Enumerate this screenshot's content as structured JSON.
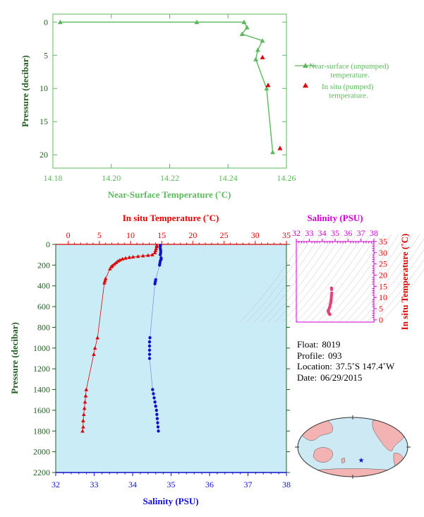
{
  "colors": {
    "surface": "#5cb85c",
    "pumped": "#dd0000",
    "temperature": "#dd0000",
    "salinity": "#1010cc",
    "salinity_axis": "#cc00cc",
    "pressure_axis": "#215c21",
    "panel_bg": "#c9ecf6",
    "land": "#f3b3b3",
    "ocean": "#cde9f3"
  },
  "chart_data": [
    {
      "id": "near-surface",
      "type": "line",
      "xlabel": "Near-Surface Temperature (˚C)",
      "ylabel": "Pressure (decibar)",
      "xlim": [
        14.18,
        14.26
      ],
      "ylim": [
        22,
        -1.2
      ],
      "x_ticks": [
        "14.18",
        "14.20",
        "14.22",
        "14.24",
        "14.26"
      ],
      "x_tick_values": [
        14.18,
        14.2,
        14.22,
        14.24,
        14.26
      ],
      "y_ticks": [
        "0",
        "5",
        "10",
        "15",
        "20"
      ],
      "y_tick_values": [
        0,
        5,
        10,
        15,
        20
      ],
      "series": [
        {
          "name": "Near-surface (unpumped) temperature.",
          "marker": "triangle",
          "points": [
            [
              14.1825,
              0.0
            ],
            [
              14.2293,
              0.0
            ],
            [
              14.2455,
              0.0
            ],
            [
              14.2465,
              0.8
            ],
            [
              14.2448,
              1.8
            ],
            [
              14.2518,
              2.8
            ],
            [
              14.2502,
              4.2
            ],
            [
              14.2495,
              5.6
            ],
            [
              14.2532,
              10.0
            ],
            [
              14.2553,
              19.6
            ]
          ]
        },
        {
          "name": "In situ (pumped) temperature.",
          "marker": "triangle",
          "points": [
            [
              14.2518,
              5.3
            ],
            [
              14.2537,
              9.5
            ],
            [
              14.2578,
              19.0
            ]
          ]
        }
      ]
    },
    {
      "id": "profile",
      "type": "line",
      "x_top_label": "In situ Temperature (˚C)",
      "x_bottom_label": "Salinity (PSU)",
      "ylabel": "Pressure (decibar)",
      "temperature_lim": [
        -2,
        35
      ],
      "salinity_lim": [
        32,
        38
      ],
      "ylim": [
        2200,
        0
      ],
      "temperature_ticks": [
        "0",
        "5",
        "10",
        "15",
        "20",
        "25",
        "30",
        "35"
      ],
      "temperature_tick_values": [
        0,
        5,
        10,
        15,
        20,
        25,
        30,
        35
      ],
      "salinity_ticks": [
        "32",
        "33",
        "34",
        "35",
        "36",
        "37",
        "38"
      ],
      "salinity_tick_values": [
        32,
        33,
        34,
        35,
        36,
        37,
        38
      ],
      "pressure_ticks": [
        "0",
        "200",
        "400",
        "600",
        "800",
        "1000",
        "1200",
        "1400",
        "1600",
        "1800",
        "2000",
        "2200"
      ],
      "pressure_tick_values": [
        0,
        200,
        400,
        600,
        800,
        1000,
        1200,
        1400,
        1600,
        1800,
        2000,
        2200
      ],
      "temperature_profile": [
        [
          14.2,
          10
        ],
        [
          14.2,
          20
        ],
        [
          14.1,
          40
        ],
        [
          14.0,
          60
        ],
        [
          13.9,
          80
        ],
        [
          13.5,
          100
        ],
        [
          12.8,
          105
        ],
        [
          12.0,
          110
        ],
        [
          11.2,
          115
        ],
        [
          10.4,
          120
        ],
        [
          9.8,
          125
        ],
        [
          9.2,
          132
        ],
        [
          8.7,
          140
        ],
        [
          8.3,
          150
        ],
        [
          8.0,
          160
        ],
        [
          7.7,
          175
        ],
        [
          7.4,
          190
        ],
        [
          7.1,
          205
        ],
        [
          6.9,
          215
        ],
        [
          6.7,
          235
        ],
        [
          6.0,
          330
        ],
        [
          5.9,
          350
        ],
        [
          5.8,
          370
        ],
        [
          4.7,
          900
        ],
        [
          4.3,
          1000
        ],
        [
          4.1,
          1060
        ],
        [
          2.9,
          1400
        ],
        [
          2.8,
          1460
        ],
        [
          2.7,
          1520
        ],
        [
          2.6,
          1580
        ],
        [
          2.5,
          1640
        ],
        [
          2.4,
          1700
        ],
        [
          2.4,
          1760
        ],
        [
          2.3,
          1800
        ]
      ],
      "salinity_profile": [
        [
          34.72,
          10
        ],
        [
          34.72,
          20
        ],
        [
          34.72,
          40
        ],
        [
          34.73,
          60
        ],
        [
          34.73,
          80
        ],
        [
          34.72,
          100
        ],
        [
          34.74,
          130
        ],
        [
          34.74,
          145
        ],
        [
          34.72,
          160
        ],
        [
          34.71,
          180
        ],
        [
          34.7,
          200
        ],
        [
          34.6,
          340
        ],
        [
          34.59,
          360
        ],
        [
          34.58,
          380
        ],
        [
          34.45,
          900
        ],
        [
          34.44,
          940
        ],
        [
          34.44,
          980
        ],
        [
          34.44,
          1020
        ],
        [
          34.44,
          1060
        ],
        [
          34.44,
          1100
        ],
        [
          34.52,
          1400
        ],
        [
          34.54,
          1440
        ],
        [
          34.56,
          1480
        ],
        [
          34.58,
          1520
        ],
        [
          34.6,
          1560
        ],
        [
          34.62,
          1600
        ],
        [
          34.63,
          1640
        ],
        [
          34.64,
          1680
        ],
        [
          34.65,
          1720
        ],
        [
          34.66,
          1760
        ],
        [
          34.67,
          1800
        ]
      ]
    },
    {
      "id": "ts-diagram",
      "type": "scatter",
      "xlabel": "Salinity (PSU)",
      "ylabel": "In situ Temperature (˚C)",
      "xlim": [
        32,
        38
      ],
      "ylim": [
        -1,
        35
      ],
      "x_ticks": [
        "32",
        "33",
        "34",
        "35",
        "36",
        "37",
        "38"
      ],
      "x_tick_values": [
        32,
        33,
        34,
        35,
        36,
        37,
        38
      ],
      "y_ticks": [
        "0",
        "5",
        "10",
        "15",
        "20",
        "25",
        "30",
        "35"
      ],
      "y_tick_values": [
        0,
        5,
        10,
        15,
        20,
        25,
        30,
        35
      ],
      "points": [
        [
          34.72,
          14.2
        ],
        [
          34.73,
          13.6
        ],
        [
          34.74,
          12.0
        ],
        [
          34.72,
          11.0
        ],
        [
          34.71,
          10.2
        ],
        [
          34.7,
          9.4
        ],
        [
          34.69,
          8.7
        ],
        [
          34.68,
          8.1
        ],
        [
          34.66,
          7.4
        ],
        [
          34.62,
          6.9
        ],
        [
          34.6,
          6.0
        ],
        [
          34.56,
          5.4
        ],
        [
          34.52,
          4.7
        ],
        [
          34.48,
          4.3
        ],
        [
          34.46,
          3.9
        ],
        [
          34.5,
          3.3
        ],
        [
          34.53,
          2.9
        ],
        [
          34.56,
          2.6
        ],
        [
          34.6,
          2.4
        ]
      ]
    }
  ],
  "info": {
    "float_label": "Float:",
    "float_value": "8019",
    "profile_label": "Profile:",
    "profile_value": "093",
    "location_label": "Location:",
    "location_value": "37.5˚S  147.4˚W",
    "date_label": "Date:",
    "date_value": "06/29/2015"
  },
  "map": {
    "marker": "star"
  }
}
